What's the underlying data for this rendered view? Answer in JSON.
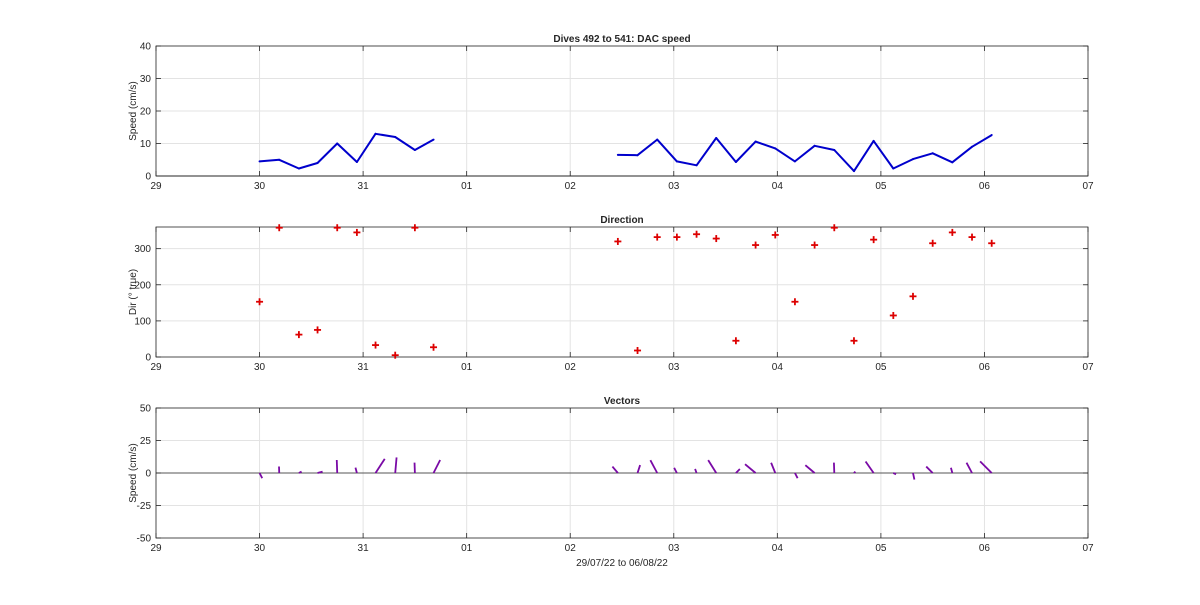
{
  "chart_data": [
    {
      "type": "line",
      "title": "Dives 492 to 541: DAC speed",
      "xlabel": "",
      "ylabel": "Speed (cm/s)",
      "ylim": [
        0,
        40
      ],
      "yticks": [
        "0",
        "10",
        "20",
        "30",
        "40"
      ],
      "xlim": [
        0,
        9
      ],
      "xticks": [
        "29",
        "30",
        "31",
        "01",
        "02",
        "03",
        "04",
        "05",
        "06",
        "07"
      ],
      "grid": true,
      "line_color": "#0000cc",
      "segments": [
        {
          "x": [
            1.0,
            1.19,
            1.38,
            1.56,
            1.75,
            1.94,
            2.12,
            2.31,
            2.5,
            2.68
          ],
          "y": [
            4.5,
            5.0,
            2.3,
            4.0,
            10.0,
            4.3,
            13.0,
            12.0,
            8.0,
            11.2
          ]
        },
        {
          "x": [
            4.46,
            4.65,
            4.84,
            5.03,
            5.22,
            5.41,
            5.6,
            5.79,
            5.98,
            6.17,
            6.36,
            6.55,
            6.74,
            6.93,
            7.12,
            7.31,
            7.5,
            7.69,
            7.88,
            8.07
          ],
          "y": [
            6.5,
            6.4,
            11.2,
            4.5,
            3.3,
            11.7,
            4.3,
            10.6,
            8.5,
            4.5,
            9.3,
            8.0,
            1.5,
            10.8,
            2.3,
            5.2,
            7.0,
            4.2,
            9.0,
            12.6
          ]
        }
      ]
    },
    {
      "type": "scatter",
      "title": "Direction",
      "xlabel": "",
      "ylabel": "Dir (° true)",
      "ylim": [
        0,
        360
      ],
      "yticks": [
        "0",
        "100",
        "200",
        "300"
      ],
      "xlim": [
        0,
        9
      ],
      "xticks": [
        "29",
        "30",
        "31",
        "01",
        "02",
        "03",
        "04",
        "05",
        "06",
        "07"
      ],
      "grid": true,
      "marker": "+",
      "marker_color": "#dd0000",
      "x": [
        1.0,
        1.19,
        1.38,
        1.56,
        1.75,
        1.94,
        2.12,
        2.31,
        2.5,
        2.68,
        4.46,
        4.65,
        4.84,
        5.03,
        5.22,
        5.41,
        5.6,
        5.79,
        5.98,
        6.17,
        6.36,
        6.55,
        6.74,
        6.93,
        7.12,
        7.31,
        7.5,
        7.69,
        7.88,
        8.07
      ],
      "y": [
        153,
        358,
        62,
        75,
        358,
        345,
        33,
        5,
        358,
        27,
        320,
        18,
        332,
        332,
        340,
        328,
        45,
        310,
        338,
        153,
        310,
        358,
        45,
        325,
        115,
        168,
        315,
        345,
        332,
        315
      ]
    },
    {
      "type": "vector",
      "title": "Vectors",
      "xlabel": "29/07/22 to 06/08/22",
      "ylabel": "Speed (cm/s)",
      "ylim": [
        -50,
        50
      ],
      "yticks": [
        "-50",
        "-25",
        "0",
        "25",
        "50"
      ],
      "xlim": [
        0,
        9
      ],
      "xticks": [
        "29",
        "30",
        "31",
        "01",
        "02",
        "03",
        "04",
        "05",
        "06",
        "07"
      ],
      "grid": true,
      "zero_line": true,
      "line_color": "#7a0aa6",
      "x": [
        1.0,
        1.19,
        1.38,
        1.56,
        1.75,
        1.94,
        2.12,
        2.31,
        2.5,
        2.68,
        4.46,
        4.65,
        4.84,
        5.03,
        5.22,
        5.41,
        5.6,
        5.79,
        5.98,
        6.17,
        6.36,
        6.55,
        6.74,
        6.93,
        7.12,
        7.31,
        7.5,
        7.69,
        7.88,
        8.07
      ],
      "speed": [
        4.5,
        5.0,
        2.3,
        4.0,
        10.0,
        4.3,
        13.0,
        12.0,
        8.0,
        11.2,
        6.5,
        6.4,
        11.2,
        4.5,
        3.3,
        11.7,
        4.3,
        10.6,
        8.5,
        4.5,
        9.3,
        8.0,
        1.5,
        10.8,
        2.3,
        5.2,
        7.0,
        4.2,
        9.0,
        12.6
      ],
      "direction": [
        153,
        358,
        62,
        75,
        358,
        345,
        33,
        5,
        358,
        27,
        320,
        18,
        332,
        332,
        340,
        328,
        45,
        310,
        338,
        153,
        310,
        358,
        45,
        325,
        115,
        168,
        315,
        345,
        332,
        315
      ]
    }
  ]
}
